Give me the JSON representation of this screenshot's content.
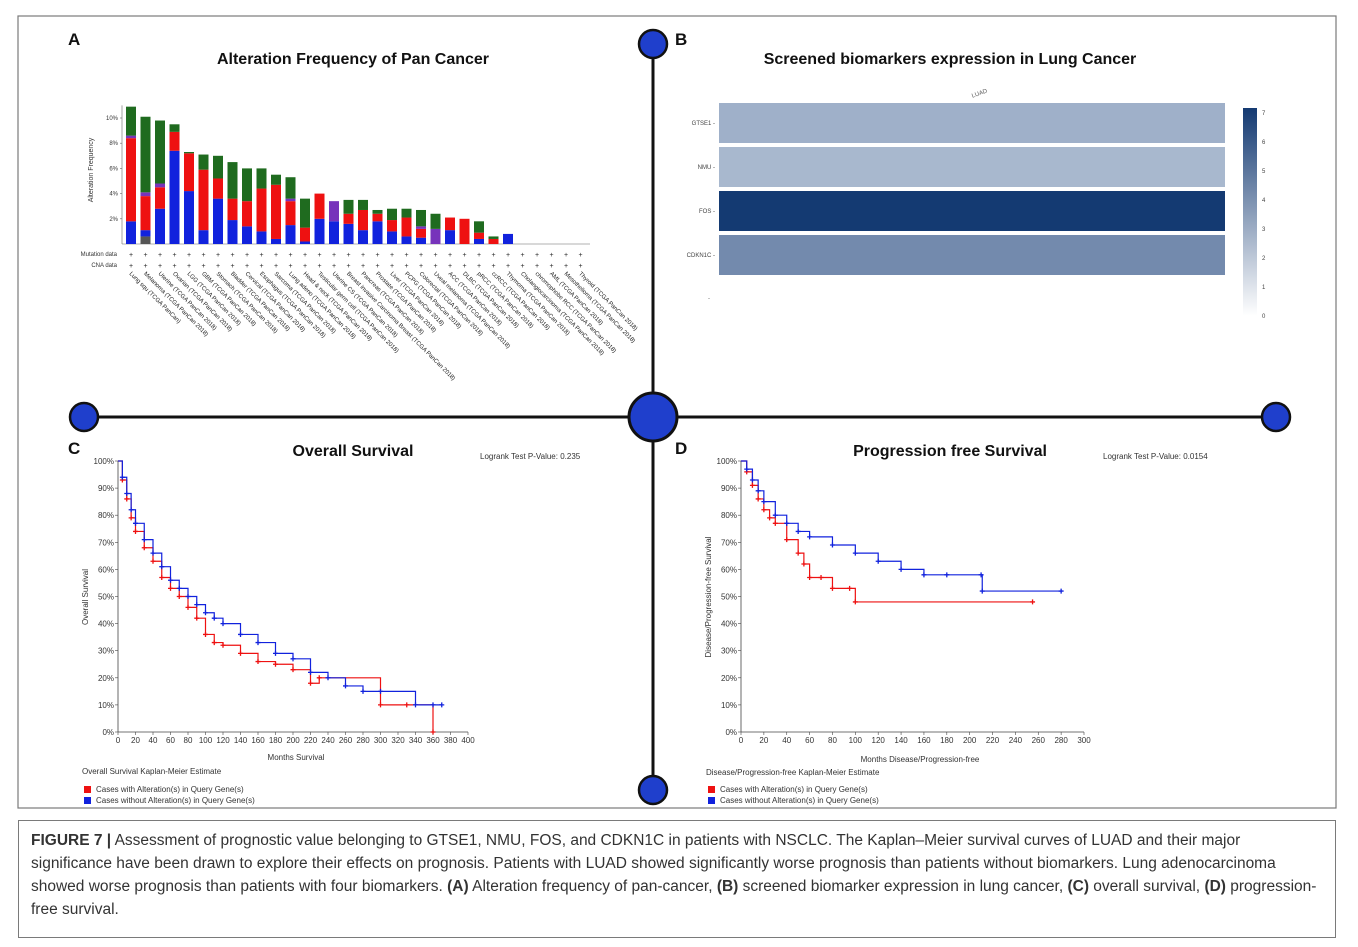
{
  "panels": {
    "A": {
      "letter": "A",
      "title": "Alteration Frequency of Pan Cancer",
      "ylabel": "Alteration Frequency",
      "row_labels": [
        "Mutation data",
        "CNA data"
      ],
      "colors": {
        "mutation": "#1f6b1f",
        "amplification": "#ee1111",
        "deep_deletion": "#1122dd",
        "multiple": "#7733bb",
        "fusion": "#555555"
      }
    },
    "B": {
      "letter": "B",
      "title": "Screened biomarkers expression in Lung Cancer",
      "column_label": "LUAD",
      "colorbar_ticks": [
        "0",
        "1",
        "2",
        "3",
        "4",
        "5",
        "6",
        "7"
      ]
    },
    "C": {
      "letter": "C",
      "title": "Overall Survival",
      "pvalue": "Logrank Test P-Value: 0.235",
      "xlabel": "Months Survival",
      "ylabel": "Overall Survival",
      "estimate_label": "Overall Survival Kaplan-Meier Estimate",
      "legend": [
        "Cases with Alteration(s) in Query Gene(s)",
        "Cases without Alteration(s) in Query Gene(s)"
      ]
    },
    "D": {
      "letter": "D",
      "title": "Progression free Survival",
      "pvalue": "Logrank Test P-Value: 0.0154",
      "xlabel": "Months Disease/Progression-free",
      "ylabel": "Disease/Progression-free Survival",
      "estimate_label": "Disease/Progression-free Kaplan-Meier Estimate",
      "legend": [
        "Cases with Alteration(s) in Query Gene(s)",
        "Cases without Alteration(s) in Query Gene(s)"
      ]
    }
  },
  "caption": {
    "label": "FIGURE 7 |",
    "text": " Assessment of prognostic value belonging to GTSE1, NMU, FOS, and CDKN1C in patients with NSCLC. The Kaplan–Meier survival curves of LUAD and their major significance have been drawn to explore their effects on prognosis. Patients with LUAD showed significantly worse prognosis than patients without biomarkers. Lung adenocarcinoma showed worse prognosis than patients with four biomarkers. ",
    "parts": [
      {
        "tag": "(A)",
        "text": " Alteration frequency of pan-cancer, "
      },
      {
        "tag": "(B)",
        "text": " screened biomarker expression in lung cancer, "
      },
      {
        "tag": "(C)",
        "text": " overall survival, "
      },
      {
        "tag": "(D)",
        "text": " progression-free survival."
      }
    ]
  },
  "chart_data": [
    {
      "type": "bar",
      "panel": "A",
      "title": "Alteration Frequency of Pan Cancer",
      "ylabel": "Alteration Frequency",
      "ylim": [
        0,
        11
      ],
      "yticks": [
        "2%",
        "4%",
        "6%",
        "8%",
        "10%"
      ],
      "categories": [
        "Lung squ (TCGA PanCan)",
        "Melanoma (TCGA PanCan 2018)",
        "Uterine (TCGA PanCan 2018)",
        "Ovarian (TCGA PanCan 2018)",
        "LGG (TCGA PanCan 2018)",
        "GBM (TCGA PanCan 2018)",
        "Stomach (TCGA PanCan 2018)",
        "Bladder (TCGA PanCan 2018)",
        "Cervical (TCGA PanCan 2018)",
        "Esophagus (TCGA PanCan 2018)",
        "Sarcoma (TCGA PanCan 2018)",
        "Lung adeno (TCGA PanCan 2018)",
        "Head & neck (TCGA PanCan 2018)",
        "Testicular germ cell (TCGA PanCan 2018)",
        "Uterine CS (TCGA PanCan 2018)",
        "Breast invasive Carcinoma Breast (TCGA PanCan 2018)",
        "Pancreas (TCGA PanCan 2018)",
        "Prostate (TCGA PanCan 2018)",
        "Liver (TCGA PanCan 2018)",
        "PCPG (TCGA PanCan 2018)",
        "Colorectal (TCGA PanCan 2018)",
        "Uveal melanoma (TCGA PanCan 2018)",
        "ACC (TCGA PanCan 2018)",
        "DLBC (TCGA PanCan 2018)",
        "pRCC (TCGA PanCan 2018)",
        "ccRCC (TCGA PanCan 2018)",
        "Thymoma (TCGA PanCan 2018)",
        "Cholangiocarcinoma (TCGA PanCan 2018)",
        "chromophobe RCC (TCGA PanCan 2018)",
        "AML (TCGA PanCan 2018)",
        "Mesothelioma (TCGA PanCan 2018)",
        "Thyroid (TCGA PanCan 2018)"
      ],
      "series": [
        {
          "name": "",
          "key": "fusion",
          "values": [
            0,
            0.6,
            0,
            0,
            0,
            0,
            0,
            0,
            0,
            0,
            0,
            0,
            0,
            0,
            0,
            0,
            0,
            0,
            0,
            0,
            0,
            0,
            0,
            0,
            0,
            0,
            0,
            0,
            0,
            0,
            0,
            0
          ]
        },
        {
          "name": "",
          "key": "deep_deletion",
          "values": [
            1.8,
            0.5,
            2.8,
            7.4,
            4.2,
            1.1,
            3.6,
            1.9,
            1.4,
            1.0,
            0.4,
            1.5,
            0.2,
            2.0,
            1.8,
            1.6,
            1.1,
            1.8,
            1.0,
            0.6,
            0.5,
            0,
            1.1,
            0,
            0.4,
            0,
            0.8,
            0,
            0,
            0,
            0,
            0
          ]
        },
        {
          "name": "",
          "key": "amplification",
          "values": [
            6.6,
            2.7,
            1.7,
            1.5,
            3.0,
            4.8,
            1.6,
            1.7,
            2.0,
            3.4,
            4.3,
            1.9,
            1.1,
            2.0,
            0,
            0.8,
            1.6,
            0.6,
            0.9,
            1.5,
            0.7,
            0,
            1.0,
            2.0,
            0.5,
            0.4,
            0,
            0,
            0,
            0,
            0,
            0
          ]
        },
        {
          "name": "",
          "key": "multiple",
          "values": [
            0.2,
            0.3,
            0.3,
            0,
            0,
            0,
            0,
            0,
            0,
            0,
            0,
            0.2,
            0,
            0,
            1.6,
            0,
            0,
            0,
            0,
            0,
            0.2,
            1.2,
            0,
            0,
            0,
            0,
            0,
            0,
            0,
            0,
            0,
            0
          ]
        },
        {
          "name": "",
          "key": "mutation",
          "values": [
            2.3,
            6.0,
            5.0,
            0.6,
            0.1,
            1.2,
            1.8,
            2.9,
            2.6,
            1.6,
            0.8,
            1.7,
            2.3,
            0,
            0,
            1.1,
            0.8,
            0.3,
            0.9,
            0.7,
            1.3,
            1.2,
            0,
            0,
            0.9,
            0.2,
            0,
            0,
            0,
            0,
            0,
            0
          ]
        }
      ]
    },
    {
      "type": "heatmap",
      "panel": "B",
      "title": "Screened biomarkers expression in Lung Cancer",
      "columns": [
        "LUAD"
      ],
      "rows": [
        "GTSE1",
        "NMU",
        "FOS",
        "CDKN1C"
      ],
      "values": [
        [
          2.3
        ],
        [
          2.0
        ],
        [
          7.0
        ],
        [
          3.8
        ]
      ],
      "zlim": [
        0,
        7
      ]
    },
    {
      "type": "line",
      "panel": "C",
      "title": "Overall Survival",
      "xlabel": "Months Survival",
      "ylabel": "Overall Survival",
      "xlim": [
        0,
        400
      ],
      "ylim": [
        0,
        100
      ],
      "xticks": [
        0,
        20,
        40,
        60,
        80,
        100,
        120,
        140,
        160,
        180,
        200,
        220,
        240,
        260,
        280,
        300,
        320,
        340,
        360,
        380,
        400
      ],
      "yticks": [
        0,
        10,
        20,
        30,
        40,
        50,
        60,
        70,
        80,
        90,
        100
      ],
      "series": [
        {
          "name": "Cases with Alteration(s) in Query Gene(s)",
          "color": "#ee1111",
          "x": [
            0,
            5,
            10,
            15,
            20,
            30,
            40,
            50,
            60,
            70,
            80,
            90,
            100,
            110,
            120,
            140,
            160,
            180,
            200,
            220,
            230,
            300,
            330,
            360
          ],
          "y": [
            100,
            93,
            86,
            79,
            74,
            68,
            63,
            57,
            53,
            50,
            46,
            42,
            36,
            33,
            32,
            29,
            26,
            25,
            23,
            18,
            20,
            10,
            10,
            0
          ]
        },
        {
          "name": "Cases without Alteration(s) in Query Gene(s)",
          "color": "#1122dd",
          "x": [
            0,
            5,
            10,
            15,
            20,
            30,
            40,
            50,
            60,
            70,
            80,
            90,
            100,
            110,
            120,
            140,
            160,
            180,
            200,
            220,
            240,
            260,
            280,
            300,
            340,
            360,
            370
          ],
          "y": [
            100,
            94,
            88,
            82,
            77,
            71,
            66,
            61,
            56,
            53,
            50,
            47,
            44,
            42,
            40,
            36,
            33,
            29,
            27,
            22,
            20,
            17,
            15,
            15,
            10,
            10,
            10
          ]
        }
      ]
    },
    {
      "type": "line",
      "panel": "D",
      "title": "Progression free Survival",
      "xlabel": "Months Disease/Progression-free",
      "ylabel": "Disease/Progression-free Survival",
      "xlim": [
        0,
        300
      ],
      "ylim": [
        0,
        100
      ],
      "xticks": [
        0,
        20,
        40,
        60,
        80,
        100,
        120,
        140,
        160,
        180,
        200,
        220,
        240,
        260,
        280,
        300
      ],
      "yticks": [
        0,
        10,
        20,
        30,
        40,
        50,
        60,
        70,
        80,
        90,
        100
      ],
      "series": [
        {
          "name": "Cases with Alteration(s) in Query Gene(s)",
          "color": "#ee1111",
          "x": [
            0,
            5,
            10,
            15,
            20,
            25,
            30,
            40,
            50,
            55,
            60,
            70,
            80,
            95,
            100,
            255
          ],
          "y": [
            100,
            96,
            91,
            86,
            82,
            79,
            77,
            71,
            66,
            62,
            57,
            57,
            53,
            53,
            48,
            48
          ]
        },
        {
          "name": "Cases without Alteration(s) in Query Gene(s)",
          "color": "#1122dd",
          "x": [
            0,
            5,
            10,
            15,
            20,
            30,
            40,
            50,
            60,
            80,
            100,
            120,
            140,
            160,
            180,
            210,
            211,
            280
          ],
          "y": [
            100,
            97,
            93,
            89,
            85,
            80,
            77,
            74,
            72,
            69,
            66,
            63,
            60,
            58,
            58,
            58,
            52,
            52
          ]
        }
      ]
    }
  ]
}
